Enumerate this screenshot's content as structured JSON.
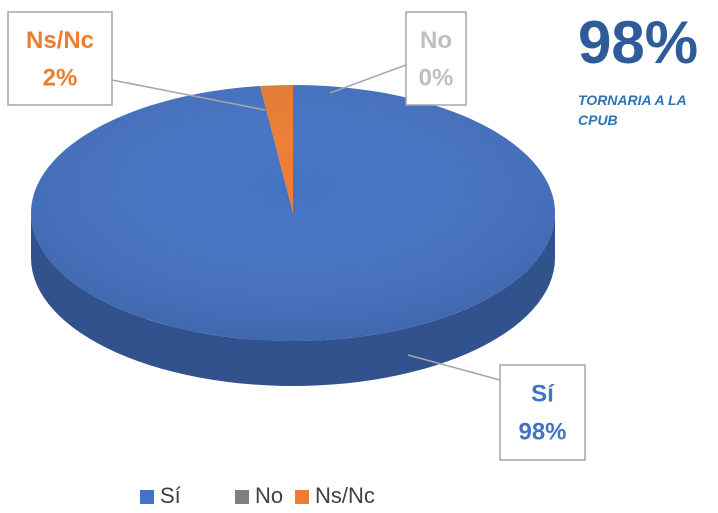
{
  "chart_data": {
    "type": "pie",
    "categories": [
      "Sí",
      "No",
      "Ns/Nc"
    ],
    "values": [
      98,
      0,
      2
    ],
    "value_labels": [
      "98%",
      "0%",
      "2%"
    ],
    "colors": [
      "#4472c4",
      "#7f7f7f",
      "#ed7d31"
    ],
    "label_colors": [
      "#4472c4",
      "#bfbfbf",
      "#ed7d31"
    ],
    "annotation": "98%",
    "annotation_text": "TORNARIA A LA CPUB",
    "legend": "bottom"
  }
}
